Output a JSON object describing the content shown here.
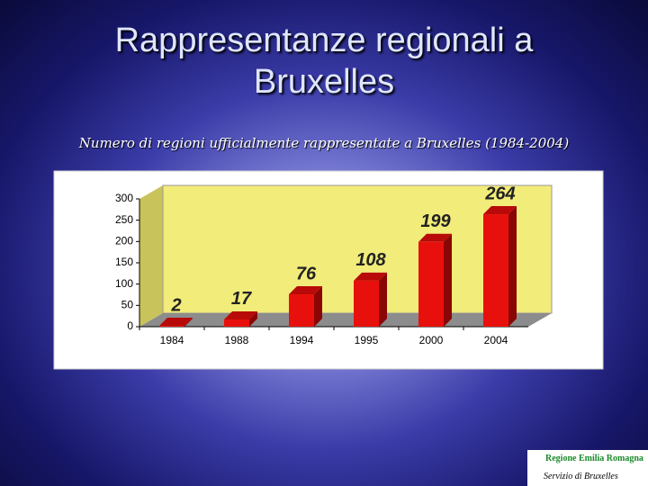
{
  "chart_data": {
    "type": "bar3d",
    "title": "Rappresentanze regionali a Bruxelles",
    "subtitle": "Numero di regioni ufficialmente rappresentate a Bruxelles (1984-2004)",
    "categories": [
      "1984",
      "1988",
      "1994",
      "1995",
      "2000",
      "2004"
    ],
    "values": [
      2,
      17,
      76,
      108,
      199,
      264
    ],
    "color": "#e8100c",
    "wall_color": "#f2ec7a",
    "floor_color": "#8c8c8c",
    "ylim": [
      0,
      300
    ],
    "yticks": [
      0,
      50,
      100,
      150,
      200,
      250,
      300
    ],
    "grid": false,
    "data_labels": true
  },
  "logo": {
    "name": "Regione Emilia Romagna",
    "caption": "Servizio di Bruxelles"
  }
}
